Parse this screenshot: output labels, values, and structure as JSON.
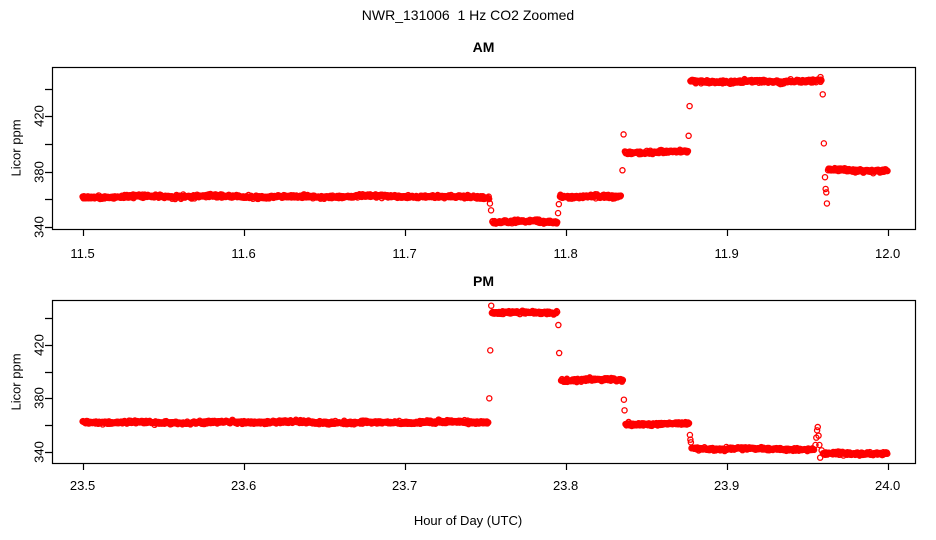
{
  "chart_data": {
    "type": "scatter",
    "title": "NWR_131006  1 Hz CO2 Zoomed",
    "xlabel": "Hour of Day (UTC)",
    "ylabel": "Licor ppm",
    "point_style": "open-circle",
    "point_color": "#ff0000",
    "axis_color": "#000000",
    "background_color": "#ffffff",
    "sample_rate_hz": 1,
    "noise_sigma_ppm": 0.55,
    "panels": [
      {
        "title": "AM",
        "xlim": [
          11.481,
          12.017
        ],
        "ylim": [
          338.5,
          455.8
        ],
        "xticks": [
          {
            "v": 11.5,
            "label": "11.5"
          },
          {
            "v": 11.6,
            "label": "11.6"
          },
          {
            "v": 11.7,
            "label": "11.7"
          },
          {
            "v": 11.8,
            "label": "11.8"
          },
          {
            "v": 11.9,
            "label": "11.9"
          },
          {
            "v": 12.0,
            "label": "12.0"
          }
        ],
        "yticks": [
          {
            "v": 340,
            "label": "340"
          },
          {
            "v": 360,
            "label": ""
          },
          {
            "v": 380,
            "label": "380"
          },
          {
            "v": 400,
            "label": ""
          },
          {
            "v": 420,
            "label": "420"
          },
          {
            "v": 440,
            "label": ""
          }
        ],
        "segments": [
          {
            "t0": 11.5,
            "t1": 11.7525,
            "value": 362.0
          },
          {
            "t0": 11.7545,
            "t1": 11.795,
            "value": 343.5
          },
          {
            "t0": 11.7965,
            "t1": 11.8345,
            "value": 362.0
          },
          {
            "t0": 11.8368,
            "t1": 11.8762,
            "value": 394.0
          },
          {
            "t0": 11.8775,
            "t1": 11.959,
            "value": 445.5
          },
          {
            "t0": 11.963,
            "t1": 12.0,
            "value": 381.0
          }
        ],
        "transition_points": [
          {
            "t": 11.753,
            "v": 357.0
          },
          {
            "t": 11.7537,
            "v": 352.0
          },
          {
            "t": 11.7953,
            "v": 350.0
          },
          {
            "t": 11.7958,
            "v": 356.5
          },
          {
            "t": 11.8353,
            "v": 381.0
          },
          {
            "t": 11.836,
            "v": 407.0
          },
          {
            "t": 11.8764,
            "v": 406.0
          },
          {
            "t": 11.877,
            "v": 427.5
          },
          {
            "t": 11.9583,
            "v": 448.5
          },
          {
            "t": 11.9597,
            "v": 436.0
          },
          {
            "t": 11.9604,
            "v": 400.5
          },
          {
            "t": 11.9611,
            "v": 376.0
          },
          {
            "t": 11.9615,
            "v": 367.5
          },
          {
            "t": 11.9619,
            "v": 365.0
          },
          {
            "t": 11.9623,
            "v": 357.0
          }
        ]
      },
      {
        "title": "PM",
        "xlim": [
          23.481,
          24.017
        ],
        "ylim": [
          331.5,
          453.8
        ],
        "xticks": [
          {
            "v": 23.5,
            "label": "23.5"
          },
          {
            "v": 23.6,
            "label": "23.6"
          },
          {
            "v": 23.7,
            "label": "23.7"
          },
          {
            "v": 23.8,
            "label": "23.8"
          },
          {
            "v": 23.9,
            "label": "23.9"
          },
          {
            "v": 24.0,
            "label": "24.0"
          }
        ],
        "yticks": [
          {
            "v": 340,
            "label": "340"
          },
          {
            "v": 360,
            "label": ""
          },
          {
            "v": 380,
            "label": "380"
          },
          {
            "v": 400,
            "label": ""
          },
          {
            "v": 420,
            "label": "420"
          },
          {
            "v": 440,
            "label": ""
          }
        ],
        "segments": [
          {
            "t0": 23.5,
            "t1": 23.752,
            "value": 362.0
          },
          {
            "t0": 23.7542,
            "t1": 23.795,
            "value": 444.5
          },
          {
            "t0": 23.7972,
            "t1": 23.8358,
            "value": 393.5
          },
          {
            "t0": 23.8372,
            "t1": 23.8768,
            "value": 361.0
          },
          {
            "t0": 23.8782,
            "t1": 23.9545,
            "value": 342.0
          },
          {
            "t0": 23.9598,
            "t1": 24.0,
            "value": 338.5
          }
        ],
        "transition_points": [
          {
            "t": 23.7526,
            "v": 380.0
          },
          {
            "t": 23.7532,
            "v": 416.0
          },
          {
            "t": 23.7538,
            "v": 449.5
          },
          {
            "t": 23.7955,
            "v": 435.0
          },
          {
            "t": 23.796,
            "v": 414.0
          },
          {
            "t": 23.8362,
            "v": 379.0
          },
          {
            "t": 23.8366,
            "v": 371.0
          },
          {
            "t": 23.8772,
            "v": 352.5
          },
          {
            "t": 23.8775,
            "v": 349.0
          },
          {
            "t": 23.8778,
            "v": 347.0
          },
          {
            "t": 23.9552,
            "v": 345.0
          },
          {
            "t": 23.9557,
            "v": 350.5
          },
          {
            "t": 23.9562,
            "v": 356.0
          },
          {
            "t": 23.9566,
            "v": 358.5
          },
          {
            "t": 23.9571,
            "v": 352.0
          },
          {
            "t": 23.9576,
            "v": 345.0
          },
          {
            "t": 23.9581,
            "v": 335.5
          },
          {
            "t": 23.959,
            "v": 341.0
          }
        ]
      }
    ]
  }
}
